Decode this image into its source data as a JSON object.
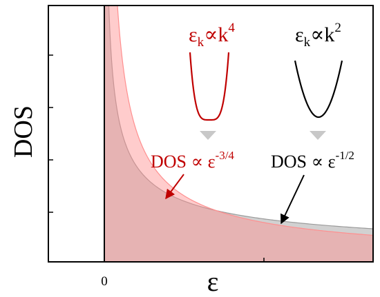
{
  "chart_data": {
    "type": "area",
    "xlabel": "ε",
    "ylabel": "DOS",
    "x_ticks": [
      "0"
    ],
    "xlim": [
      -0.5,
      2.4
    ],
    "ylim": [
      0,
      5
    ],
    "series": [
      {
        "color": "#ff8f8f",
        "exponent": -0.75,
        "dispersion_label": {
          "base": "ε",
          "sub": "k",
          "mid": "∝k",
          "sup": "4"
        },
        "dos_label": {
          "text": "DOS ∝ ε",
          "sup": "-3/4"
        },
        "label_color": "#c00000"
      },
      {
        "color": "#9a9a9a",
        "exponent": -0.5,
        "dispersion_label": {
          "base": "ε",
          "sub": "k",
          "mid": "∝k",
          "sup": "2"
        },
        "dos_label": {
          "text": "DOS ∝ ε",
          "sup": "-1/2"
        },
        "label_color": "#000000"
      }
    ],
    "grid": false,
    "legend": "none"
  }
}
